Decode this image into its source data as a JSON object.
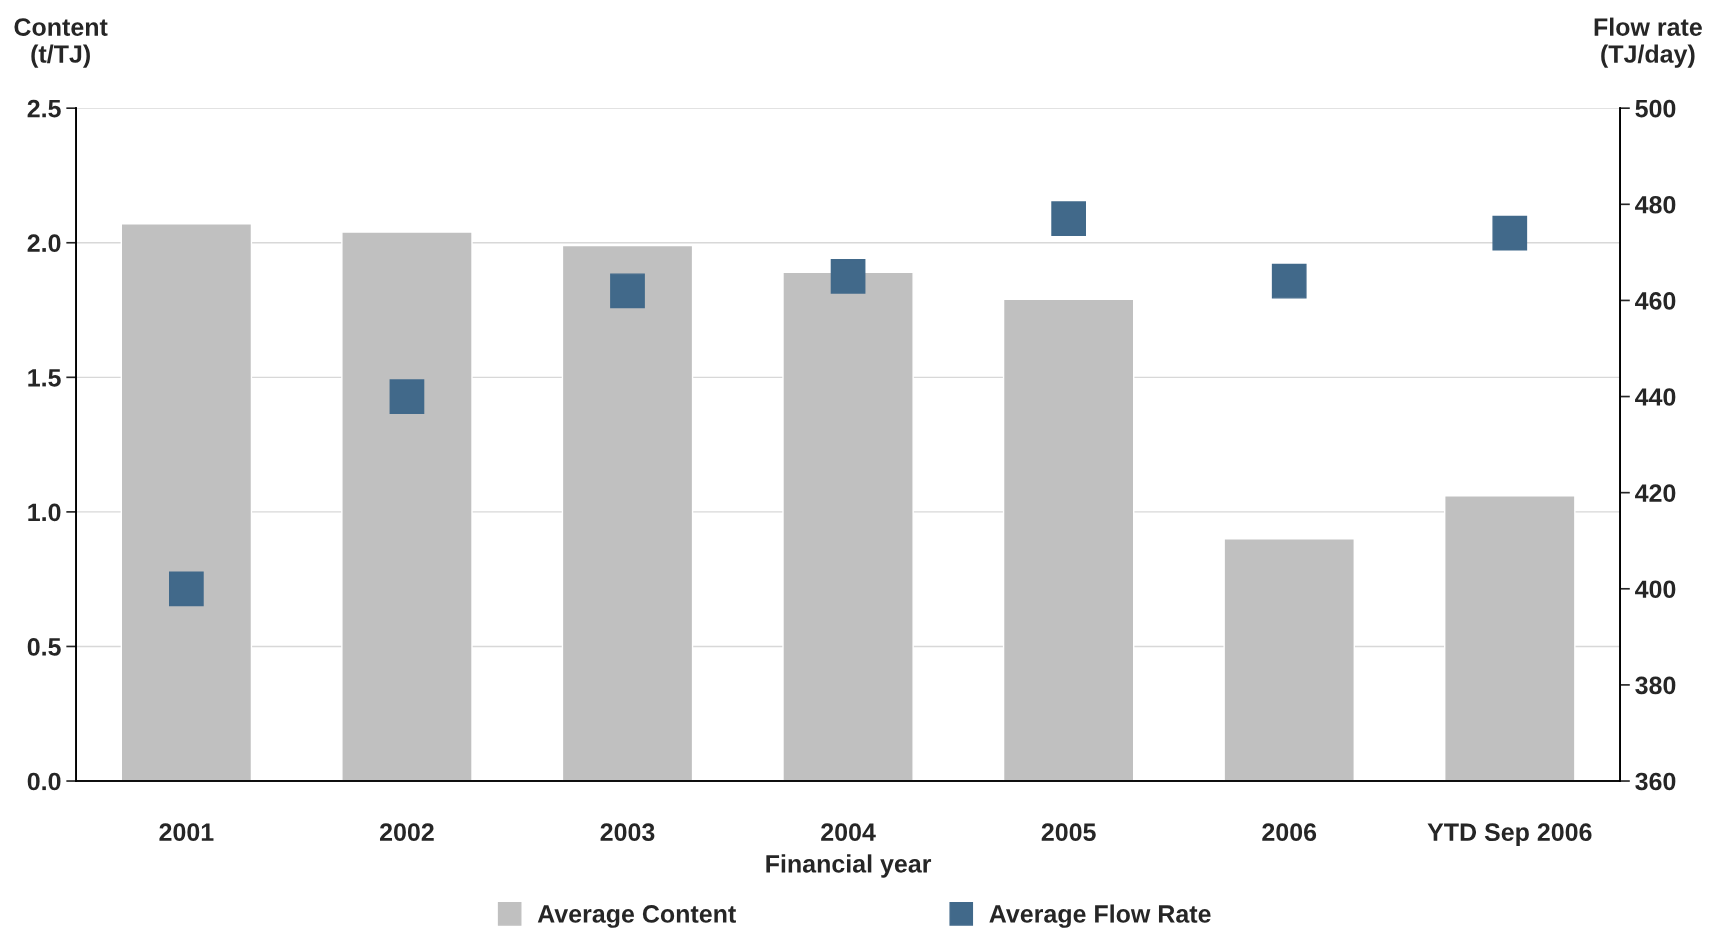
{
  "chart_data": {
    "type": "bar",
    "xlabel": "Financial year",
    "ylabel": "Content\n(t/TJ)",
    "y2label": "Flow rate\n(TJ/day)",
    "categories": [
      "2001",
      "2002",
      "2003",
      "2004",
      "2005",
      "2006",
      "YTD Sep 2006"
    ],
    "series": [
      {
        "name": "Average Content",
        "color": "#c0c0c0",
        "values": [
          2.07,
          2.04,
          1.99,
          1.89,
          1.79,
          0.9,
          1.06
        ]
      },
      {
        "name": "Average Flow Rate",
        "type": "scatter",
        "axis": "y2",
        "marker": "square",
        "color": "#41698a",
        "values": [
          400,
          440,
          462,
          465,
          477,
          464,
          474
        ]
      }
    ],
    "ylim": [
      0,
      2.5
    ],
    "yticks": [
      {
        "value": 0,
        "label": "0.0"
      },
      {
        "value": 0.5,
        "label": "0.5"
      },
      {
        "value": 1,
        "label": "1.0"
      },
      {
        "value": 1.5,
        "label": "1.5"
      },
      {
        "value": 2,
        "label": "2.0"
      },
      {
        "value": 2.5,
        "label": "2.5"
      }
    ],
    "y2lim": [
      360,
      500
    ],
    "y2ticks": [
      360,
      380,
      400,
      420,
      440,
      460,
      480,
      500
    ],
    "grid": "y",
    "legend": "bottom"
  }
}
